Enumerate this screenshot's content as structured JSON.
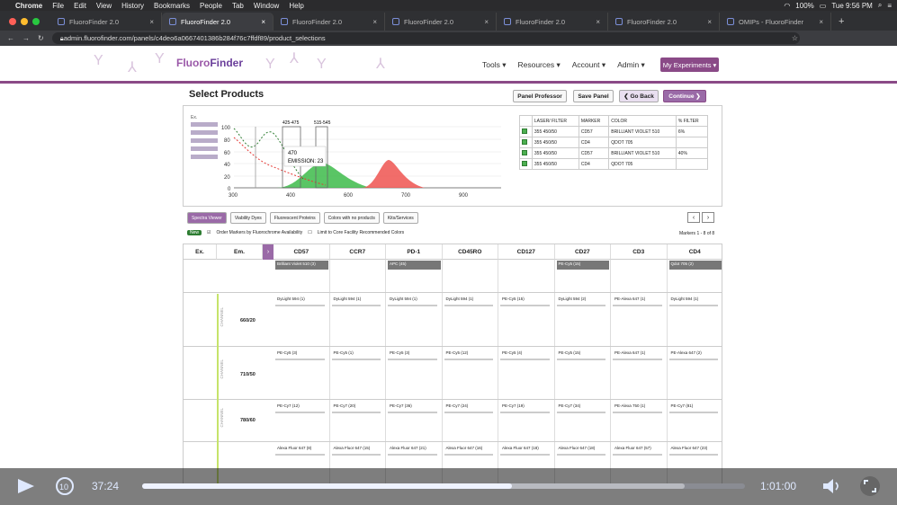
{
  "os_menu": {
    "app": "Chrome",
    "items": [
      "File",
      "Edit",
      "View",
      "History",
      "Bookmarks",
      "People",
      "Tab",
      "Window",
      "Help"
    ],
    "battery": "100%",
    "clock": "Tue 9:56 PM"
  },
  "tabs": [
    "FluoroFinder 2.0",
    "FluoroFinder 2.0",
    "FluoroFinder 2.0",
    "FluoroFinder 2.0",
    "FluoroFinder 2.0",
    "FluoroFinder 2.0",
    "OMIPs - FluoroFinder"
  ],
  "active_tab": 1,
  "url": "admin.fluorofinder.com/panels/c4deo6a0667401386b284f76c7ffdf89/product_selections",
  "site": {
    "logo_a": "Fluoro",
    "logo_b": "Finder",
    "nav": [
      "Tools ▾",
      "Resources ▾",
      "Account ▾",
      "Admin ▾"
    ],
    "my_experiments": "My Experiments ▾"
  },
  "page_title": "Select Products",
  "buttons": {
    "panel_professor": "Panel Professor",
    "save_panel": "Save Panel",
    "go_back": "❮ Go Back",
    "continue": "Continue ❯"
  },
  "spectrum": {
    "y_ticks": [
      "100",
      "80",
      "60",
      "40",
      "20",
      "0"
    ],
    "x_ticks": [
      "300",
      "400",
      "500",
      "600",
      "700",
      "800",
      "900"
    ],
    "bands": [
      "425-475",
      "515-545"
    ],
    "excitation_label": "Ex.",
    "tooltip_value": "470",
    "tooltip_emission": "EMISSION: 23"
  },
  "right_table": {
    "headers": [
      "LASER/ FILTER",
      "MARKER",
      "COLOR",
      "% FILTER"
    ],
    "rows": [
      [
        "355 450/50",
        "CD57",
        "BRILLIANT VIOLET 510",
        "6%"
      ],
      [
        "355 450/50",
        "CD4",
        "QDOT 705",
        ""
      ],
      [
        "355 450/50",
        "CD57",
        "BRILLIANT VIOLET 510",
        "40%"
      ],
      [
        "355 450/50",
        "CD4",
        "QDOT 705",
        ""
      ]
    ]
  },
  "view_buttons": [
    "Spectra Viewer",
    "Viability Dyes",
    "Fluorescent Proteins",
    "Colors with no products",
    "Kits/Services"
  ],
  "options": {
    "new": "New",
    "order_markers": "Order Markers by Fluorochrome Availability",
    "limit": "Limit to Core Facility Recommended Colors"
  },
  "marker_count": "Markers 1 - 8 of 8",
  "grid": {
    "ex": "Ex.",
    "em": "Em.",
    "markers": [
      "CD57",
      "CCR7",
      "PD-1",
      "CD45RO",
      "CD127",
      "CD27",
      "CD3",
      "CD4"
    ],
    "selected": [
      "Brilliant Violet 510 (3)",
      "",
      "APC (45)",
      "",
      "",
      "PE-Cy5 (15)",
      "",
      "Qdot 705 (2)"
    ],
    "channel": "CHANNEL",
    "rows": [
      {
        "em": "660/20",
        "cells": [
          "DyLight 594 (1)",
          "DyLight 594 (1)",
          "DyLight 594 (1)",
          "DyLight 594 (1)",
          "PE-Cy5 (15)",
          "DyLight 594 (2)",
          "PE-Alexa 647 (1)",
          "DyLight 594 (1)"
        ]
      },
      {
        "em": "710/50",
        "cells": [
          "PE-Cy5 (3)",
          "PE-Cy5 (1)",
          "PE-Cy5 (3)",
          "PE-Cy5 (12)",
          "PE-Cy5 (4)",
          "PE-Cy5 (15)",
          "PE-Alexa 647 (1)",
          "PE-Alexa 647 (2)"
        ]
      },
      {
        "em": "780/60",
        "cells": [
          "PE-Cy7 (12)",
          "PE-Cy7 (20)",
          "PE-Cy7 (36)",
          "PE-Cy7 (24)",
          "PE-Cy7 (19)",
          "PE-Cy7 (34)",
          "PE-Alexa 750 (1)",
          "PE-Cy7 (81)"
        ]
      },
      {
        "em": "",
        "cells": [
          "Alexa Fluor 647 (8)",
          "Alexa Fluor 647 (15)",
          "Alexa Fluor 647 (21)",
          "Alexa Fluor 647 (16)",
          "Alexa Fluor 647 (18)",
          "Alexa Fluor 647 (18)",
          "Alexa Fluor 647 (57)",
          "Alexa Fluor 647 (23)"
        ]
      }
    ]
  },
  "video": {
    "time": "37:24",
    "duration": "1:01:00",
    "progress": 0.613
  }
}
